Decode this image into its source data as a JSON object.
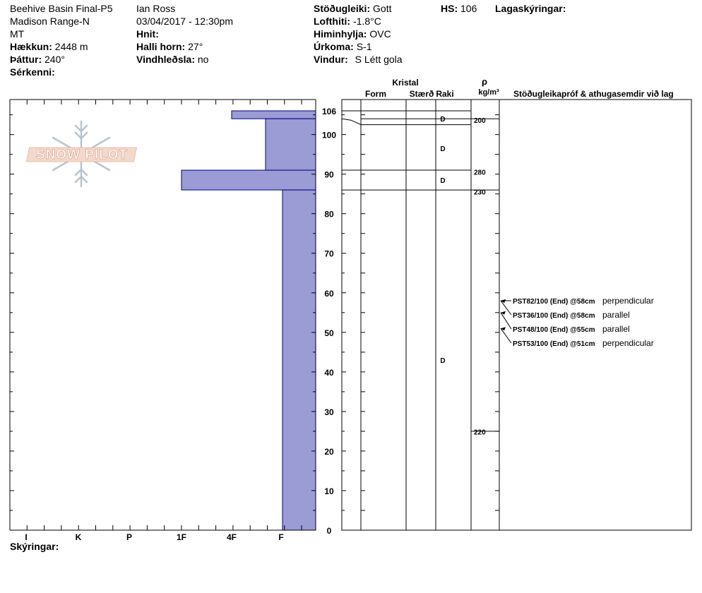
{
  "header": {
    "col1": [
      "Beehive Basin Final-P5",
      "Madison Range-N",
      "MT"
    ],
    "elevation_label": "Hækkun:",
    "elevation_value": "2448 m",
    "aspect_label": "Þáttur:",
    "aspect_value": "240°",
    "features_label": "Sérkenni:",
    "observer": "Ian Ross",
    "datetime": "03/04/2017 - 12:30pm",
    "coords_label": "Hnit:",
    "slope_label": "Halli horn:",
    "slope_value": "27°",
    "wind_loading_label": "Vindhleðsla:",
    "wind_loading_value": "no",
    "stability_label": "Stöðugleiki:",
    "stability_value": "Gott",
    "air_temp_label": "Lofthiti:",
    "air_temp_value": "-1.8°C",
    "sky_label": "Himinhylja:",
    "sky_value": "OVC",
    "precip_label": "Úrkoma:",
    "precip_value": "S-1",
    "wind_label": "Vindur:",
    "wind_value": "S Létt gola",
    "hs_label": "HS:",
    "hs_value": "106",
    "layer_notes_label": "Lagaskýringar:",
    "comments_label": "Skýringar:"
  },
  "logo_text": "SNOW PILOT",
  "columns": {
    "crystal": "Kristal",
    "form": "Form",
    "size": "Stærð",
    "moisture": "Raki",
    "rho": "ρ",
    "density_unit": "kg/m³",
    "tests": "Stöðugleikapróf & athugasemdir við lag"
  },
  "chart_data": {
    "type": "snow-profile",
    "y_ticks": [
      0,
      10,
      20,
      30,
      40,
      50,
      60,
      70,
      80,
      90,
      100,
      106
    ],
    "ylim": [
      0,
      106
    ],
    "hardness_labels": [
      "I",
      "K",
      "P",
      "1F",
      "4F",
      "F"
    ],
    "hardness_layers": [
      {
        "top": 106,
        "bottom": 104,
        "hardness": "4F"
      },
      {
        "top": 104,
        "bottom": 91,
        "hardness": "4F-"
      },
      {
        "top": 91,
        "bottom": 86,
        "hardness": "1F"
      },
      {
        "top": 86,
        "bottom": 0,
        "hardness": "F"
      }
    ],
    "layer_boundaries": [
      106,
      104,
      102.5,
      91,
      86
    ],
    "moisture": [
      {
        "height": 104,
        "value": "D"
      },
      {
        "height": 96.5,
        "value": "D"
      },
      {
        "height": 88.5,
        "value": "D"
      },
      {
        "height": 43,
        "value": "D"
      }
    ],
    "density": [
      {
        "height": 103.7,
        "value": "200"
      },
      {
        "height": 90.6,
        "value": "280"
      },
      {
        "height": 85.6,
        "value": "230"
      },
      {
        "height": 24.9,
        "value": "220"
      }
    ],
    "density_lines": [
      104,
      86,
      25
    ],
    "tests": [
      {
        "height": 58,
        "label": "PST82/100 (End) @58cm",
        "note": "perpendicular"
      },
      {
        "height": 58,
        "label": "PST36/100 (End) @58cm",
        "note": "parallel"
      },
      {
        "height": 55,
        "label": "PST48/100 (End) @55cm",
        "note": "parallel"
      },
      {
        "height": 51,
        "label": "PST53/100 (End) @51cm",
        "note": "perpendicular"
      }
    ],
    "fill_color": "#9b9bd5",
    "stroke_color": "#000080"
  }
}
